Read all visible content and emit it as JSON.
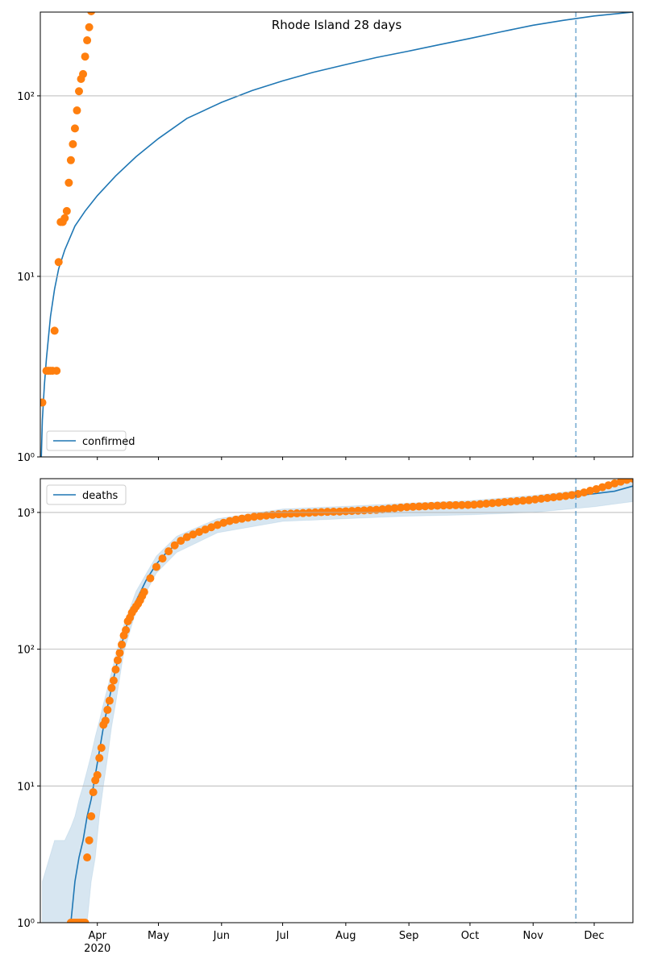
{
  "chart_data": [
    {
      "type": "line",
      "title": "Rhode Island 28 days",
      "log_y": true,
      "grid": "y",
      "legend": "lower left",
      "xlim": [
        63,
        354
      ],
      "ylim": [
        1,
        291
      ],
      "xticks": [
        91,
        121,
        152,
        182,
        213,
        244,
        274,
        305,
        335
      ],
      "xtick_labels": false,
      "yticks": [
        {
          "value": 1,
          "label": "10⁰"
        },
        {
          "value": 10,
          "label": "10¹"
        },
        {
          "value": 100,
          "label": "10²"
        }
      ],
      "vlines": [
        326
      ],
      "vline_color": "#1f77b4",
      "series": [
        {
          "name": "confirmed",
          "color": "#1f77b4",
          "style": "line",
          "x": [
            63.5,
            64,
            65,
            66,
            68,
            70,
            72,
            75,
            80,
            85,
            91,
            100,
            110,
            121,
            135,
            152,
            167,
            182,
            197,
            213,
            228,
            244,
            259,
            274,
            289,
            305,
            320,
            335,
            354
          ],
          "values": [
            1,
            1.6,
            2.5,
            3.5,
            6,
            8.5,
            11,
            14,
            19,
            23,
            28,
            36,
            46,
            58,
            75,
            92,
            107,
            121,
            135,
            149,
            163,
            177,
            192,
            208,
            226,
            246,
            262,
            277,
            291
          ]
        },
        {
          "color": "#ff7f0e",
          "style": "points",
          "x": [
            64,
            66,
            67,
            68,
            69,
            70,
            71,
            72,
            73,
            74,
            75,
            76,
            77,
            78,
            79,
            80,
            81,
            82,
            83,
            84,
            85,
            86,
            87,
            88
          ],
          "values": [
            2,
            3,
            3,
            3,
            3,
            5,
            3,
            12,
            20,
            20,
            21,
            23,
            33,
            44,
            54,
            66,
            83,
            106,
            124,
            132,
            165,
            203,
            240,
            294
          ]
        }
      ]
    },
    {
      "type": "line",
      "log_y": true,
      "grid": "y",
      "legend": "upper left",
      "xlim": [
        63,
        354
      ],
      "ylim": [
        1,
        1766
      ],
      "xticks": [
        {
          "value": 91,
          "label": "Apr\n2020"
        },
        {
          "value": 121,
          "label": "May"
        },
        {
          "value": 152,
          "label": "Jun"
        },
        {
          "value": 182,
          "label": "Jul"
        },
        {
          "value": 213,
          "label": "Aug"
        },
        {
          "value": 244,
          "label": "Sep"
        },
        {
          "value": 274,
          "label": "Oct"
        },
        {
          "value": 305,
          "label": "Nov"
        },
        {
          "value": 335,
          "label": "Dec"
        }
      ],
      "yticks": [
        {
          "value": 1,
          "label": "10⁰"
        },
        {
          "value": 10,
          "label": "10¹"
        },
        {
          "value": 100,
          "label": "10²"
        },
        {
          "value": 1000,
          "label": "10³"
        }
      ],
      "vlines": [
        326
      ],
      "vline_color": "#1f77b4",
      "band": {
        "color": "#1f77b4",
        "x": [
          64,
          70,
          75,
          78,
          80,
          82,
          84,
          86,
          88,
          90,
          92,
          94,
          96,
          98,
          100,
          104,
          110,
          120,
          130,
          150,
          182,
          213,
          244,
          274,
          305,
          335,
          354
        ],
        "upper": [
          2,
          4,
          4,
          5,
          6,
          8,
          10,
          13,
          17,
          23,
          30,
          40,
          52,
          68,
          90,
          150,
          265,
          480,
          670,
          900,
          1060,
          1110,
          1170,
          1220,
          1330,
          1490,
          1680
        ],
        "lower": [
          1,
          1,
          1,
          1,
          1,
          1,
          1,
          1,
          2,
          3,
          6,
          10,
          16,
          27,
          40,
          95,
          190,
          360,
          510,
          710,
          860,
          900,
          940,
          960,
          1000,
          1100,
          1200
        ]
      },
      "series": [
        {
          "name": "deaths",
          "color": "#1f77b4",
          "style": "line",
          "x": [
            78,
            80,
            82,
            84,
            86,
            88,
            90,
            92,
            94,
            96,
            98,
            100,
            102,
            104,
            106,
            110,
            115,
            120,
            125,
            130,
            140,
            150,
            160,
            170,
            182,
            200,
            213,
            230,
            244,
            260,
            274,
            290,
            305,
            320,
            335,
            345,
            354
          ],
          "values": [
            1,
            2,
            3,
            4,
            6,
            8,
            12,
            18,
            27,
            38,
            52,
            72,
            95,
            125,
            160,
            225,
            320,
            420,
            510,
            590,
            700,
            800,
            870,
            920,
            960,
            990,
            1010,
            1040,
            1070,
            1100,
            1120,
            1170,
            1220,
            1300,
            1370,
            1430,
            1560
          ]
        },
        {
          "color": "#ff7f0e",
          "style": "points",
          "x": [
            78,
            79,
            80,
            81,
            82,
            83,
            84,
            85,
            86,
            87,
            88,
            89,
            90,
            91,
            92,
            93,
            94,
            95,
            96,
            97,
            98,
            99,
            100,
            101,
            102,
            103,
            104,
            105,
            106,
            107,
            108,
            109,
            110,
            111,
            112,
            113,
            114,
            117,
            120,
            123,
            126,
            129,
            132,
            135,
            138,
            141,
            144,
            147,
            150,
            153,
            156,
            159,
            162,
            165,
            168,
            171,
            174,
            177,
            180,
            183,
            186,
            189,
            192,
            195,
            198,
            201,
            204,
            207,
            210,
            213,
            216,
            219,
            222,
            225,
            228,
            231,
            234,
            237,
            240,
            243,
            246,
            249,
            252,
            255,
            258,
            261,
            264,
            267,
            270,
            273,
            276,
            279,
            282,
            285,
            288,
            291,
            294,
            297,
            300,
            303,
            306,
            309,
            312,
            315,
            318,
            321,
            324,
            327,
            330,
            333,
            336,
            339,
            342,
            345,
            348,
            351,
            354
          ],
          "values": [
            1,
            1,
            1,
            1,
            1,
            1,
            1,
            1,
            3,
            4,
            6,
            9,
            11,
            12,
            16,
            19,
            28,
            30,
            36,
            42,
            52,
            59,
            71,
            83,
            94,
            108,
            126,
            138,
            160,
            170,
            185,
            195,
            205,
            215,
            228,
            245,
            262,
            330,
            400,
            460,
            520,
            575,
            620,
            660,
            690,
            720,
            750,
            780,
            810,
            840,
            865,
            885,
            900,
            915,
            930,
            940,
            950,
            960,
            970,
            975,
            980,
            985,
            990,
            995,
            1000,
            1005,
            1010,
            1012,
            1015,
            1020,
            1025,
            1030,
            1035,
            1040,
            1045,
            1055,
            1065,
            1075,
            1085,
            1095,
            1100,
            1105,
            1110,
            1115,
            1120,
            1125,
            1128,
            1130,
            1132,
            1135,
            1140,
            1150,
            1160,
            1170,
            1180,
            1190,
            1200,
            1210,
            1220,
            1230,
            1245,
            1260,
            1275,
            1290,
            1305,
            1320,
            1340,
            1365,
            1400,
            1440,
            1480,
            1530,
            1580,
            1630,
            1680,
            1730,
            1766
          ]
        }
      ]
    }
  ]
}
